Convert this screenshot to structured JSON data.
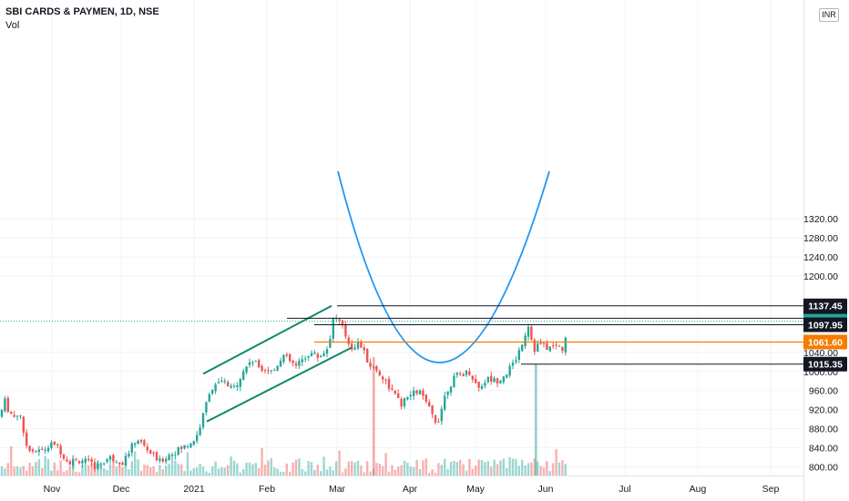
{
  "chart_data": {
    "type": "candlestick",
    "title": "SBI CARDS & PAYMEN, 1D, NSE",
    "indicator": "Vol",
    "currency": "INR",
    "x_tick_labels": [
      "Nov",
      "Dec",
      "2021",
      "Feb",
      "Mar",
      "Apr",
      "May",
      "Jun",
      "Jul",
      "Aug",
      "Sep"
    ],
    "y_tick_labels": [
      "800.00",
      "840.00",
      "880.00",
      "920.00",
      "960.00",
      "1000.00",
      "1040.00",
      "1200.00",
      "1240.00",
      "1280.00",
      "1320.00"
    ],
    "ylim": [
      782,
      1335
    ],
    "grid": true,
    "price_levels": [
      {
        "label": "1137.45",
        "value": 1137.45,
        "color": "#131722"
      },
      {
        "label": "1111.50",
        "value": 1111.5,
        "color": "#131722"
      },
      {
        "label": "1105.20",
        "value": 1105.2,
        "color": "#26a69a"
      },
      {
        "label": "1097.95",
        "value": 1097.95,
        "color": "#131722"
      },
      {
        "label": "1061.60",
        "value": 1061.6,
        "color": "#f57c00"
      },
      {
        "label": "1015.35",
        "value": 1015.35,
        "color": "#131722"
      }
    ],
    "annotations": [
      "ascending channel (Jan–Mar 2021)",
      "cup pattern (Mar–Jun 2021)"
    ],
    "colors": {
      "up": "#26a69a",
      "down": "#ef5350",
      "cup": "#2196f3",
      "channel": "#0d8a6a",
      "resistance": "#f57c00"
    }
  }
}
